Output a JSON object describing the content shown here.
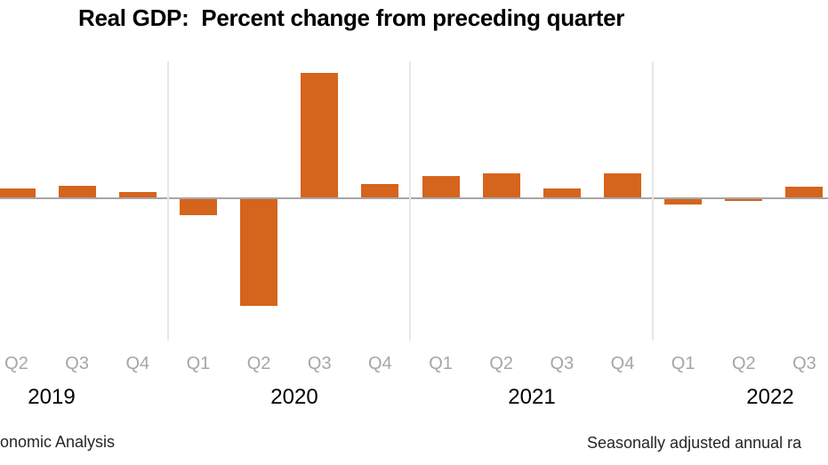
{
  "chart_data": {
    "type": "bar",
    "title": "Real GDP:  Percent change from preceding quarter",
    "categories": [
      "2019 Q2",
      "2019 Q3",
      "2019 Q4",
      "2020 Q1",
      "2020 Q2",
      "2020 Q3",
      "2020 Q4",
      "2021 Q1",
      "2021 Q2",
      "2021 Q3",
      "2021 Q4",
      "2022 Q1",
      "2022 Q2",
      "2022 Q3"
    ],
    "quarter_labels": [
      "Q2",
      "Q3",
      "Q4",
      "Q1",
      "Q2",
      "Q3",
      "Q4",
      "Q1",
      "Q2",
      "Q3",
      "Q4",
      "Q1",
      "Q2",
      "Q3"
    ],
    "values": [
      2.7,
      3.6,
      1.8,
      -4.6,
      -29.9,
      35.3,
      3.9,
      6.3,
      7.0,
      2.7,
      7.0,
      -1.6,
      -0.6,
      3.2
    ],
    "year_labels": [
      "2019",
      "2020",
      "2021",
      "2022"
    ],
    "year_separators_after_index": [
      2,
      6,
      10
    ],
    "xlabel": "",
    "ylabel": "",
    "ylim": [
      -40,
      39
    ],
    "grid": "vertical year separators only, horizontal zero axis",
    "legend": "none",
    "unit": "percent"
  },
  "colors": {
    "bar": "#D5641C",
    "zero_axis": "#A6A6A6",
    "gridline": "#E7E7E7",
    "quarter_label": "#A6A6A6",
    "year_label": "#000000",
    "title": "#000000",
    "footer": "#262626",
    "background": "#FFFFFF"
  },
  "footer": {
    "left": "onomic Analysis",
    "right": "Seasonally adjusted annual ra"
  }
}
